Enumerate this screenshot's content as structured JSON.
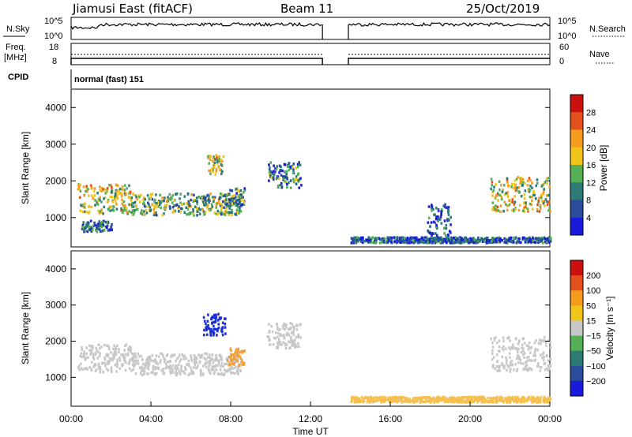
{
  "header": {
    "radar": "Jiamusi East (fitACF)",
    "beam": "Beam 11",
    "date": "25/Oct/2019",
    "cpid_label": "CPID",
    "cpid_value": "normal (fast) 151"
  },
  "chart_data": [
    {
      "type": "line",
      "name": "noise",
      "left_label": "N.Sky",
      "right_label": "N.Search",
      "left_ticks": [
        "10^5",
        "10^0"
      ],
      "right_ticks": [
        "10^5",
        "10^0"
      ]
    },
    {
      "type": "line",
      "name": "freq-nave",
      "left_label_top": "Freq.",
      "left_label_bottom": "[MHz]",
      "right_label": "Nave",
      "left_ticks": [
        "18",
        "8"
      ],
      "right_ticks": [
        "60",
        "0"
      ],
      "gap_hours": [
        12.6,
        13.9
      ]
    },
    {
      "type": "heatmap",
      "name": "power",
      "ylabel": "Slant Range [km]",
      "ylim": [
        200,
        4500
      ],
      "yticks": [
        1000,
        2000,
        3000,
        4000
      ],
      "xlim": [
        0,
        24
      ],
      "colorbar": {
        "label": "Power [dB]",
        "range": [
          0,
          32
        ],
        "ticks": [
          4,
          8,
          12,
          16,
          20,
          24,
          28
        ],
        "colors": [
          "#1a1adc",
          "#2a4c9c",
          "#2e7a74",
          "#55b055",
          "#f0c419",
          "#f59b1e",
          "#e4501b",
          "#cc1010"
        ]
      },
      "echo_regions": [
        {
          "t0": 0.3,
          "t1": 3.0,
          "r0": 1100,
          "r1": 1900,
          "level": 0.55
        },
        {
          "t0": 3.0,
          "t1": 8.5,
          "r0": 1050,
          "r1": 1650,
          "level": 0.4
        },
        {
          "t0": 6.8,
          "t1": 7.6,
          "r0": 2150,
          "r1": 2700,
          "level": 0.55
        },
        {
          "t0": 7.8,
          "t1": 8.7,
          "r0": 1300,
          "r1": 1800,
          "level": 0.3
        },
        {
          "t0": 0.5,
          "t1": 2.0,
          "r0": 600,
          "r1": 900,
          "level": 0.2
        },
        {
          "t0": 9.8,
          "t1": 11.5,
          "r0": 1800,
          "r1": 2500,
          "level": 0.25
        },
        {
          "t0": 21.0,
          "t1": 24.0,
          "r0": 1150,
          "r1": 2100,
          "level": 0.55
        },
        {
          "t0": 17.8,
          "t1": 19.0,
          "r0": 500,
          "r1": 1350,
          "level": 0.15
        },
        {
          "t0": 14.0,
          "t1": 24.0,
          "r0": 300,
          "r1": 450,
          "level": 0.15
        }
      ]
    },
    {
      "type": "heatmap",
      "name": "velocity",
      "ylabel": "Slant Range [km]",
      "xlabel": "Time UT",
      "ylim": [
        200,
        4500
      ],
      "yticks": [
        1000,
        2000,
        3000,
        4000
      ],
      "xlim": [
        0,
        24
      ],
      "xticks": [
        "00:00",
        "04:00",
        "08:00",
        "12:00",
        "16:00",
        "20:00",
        "00:00"
      ],
      "colorbar": {
        "label": "Velocity [m s⁻¹]",
        "tick_labels": [
          "200",
          "100",
          "50",
          "15",
          "−15",
          "−50",
          "−100",
          "−200"
        ],
        "colors": [
          "#1a1adc",
          "#2a4c9c",
          "#2e7a74",
          "#55b055",
          "#c8c8c8",
          "#f0c419",
          "#f59b1e",
          "#e4501b",
          "#cc1010"
        ]
      },
      "echo_regions": [
        {
          "t0": 0.3,
          "t1": 3.0,
          "r0": 1100,
          "r1": 1900,
          "color": "#c8c8c8"
        },
        {
          "t0": 3.0,
          "t1": 8.5,
          "r0": 1050,
          "r1": 1650,
          "color": "#c8c8c8"
        },
        {
          "t0": 6.6,
          "t1": 7.7,
          "r0": 2150,
          "r1": 2750,
          "color": "#1a2fd8"
        },
        {
          "t0": 7.8,
          "t1": 8.7,
          "r0": 1300,
          "r1": 1800,
          "color": "#f2a03a"
        },
        {
          "t0": 9.8,
          "t1": 11.5,
          "r0": 1800,
          "r1": 2500,
          "color": "#c8c8c8"
        },
        {
          "t0": 21.0,
          "t1": 24.0,
          "r0": 1150,
          "r1": 2100,
          "color": "#c8c8c8"
        },
        {
          "t0": 14.0,
          "t1": 24.0,
          "r0": 300,
          "r1": 450,
          "color": "#f5c050"
        }
      ]
    }
  ]
}
